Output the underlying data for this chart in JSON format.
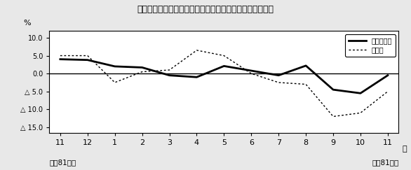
{
  "title": "第２図　所定外労働時間対前年比の推移（規模５人以上）",
  "x_labels": [
    "11",
    "12",
    "1",
    "2",
    "3",
    "4",
    "5",
    "6",
    "7",
    "8",
    "9",
    "10",
    "11"
  ],
  "x_bottom_left": "平成81８年",
  "x_bottom_right": "平成81９年",
  "month_label": "月",
  "ylabel": "%",
  "ylim": [
    -16.5,
    12.0
  ],
  "yticks": [
    10.0,
    5.0,
    0.0,
    -5.0,
    -10.0,
    -15.0
  ],
  "ytick_labels": [
    "10.0",
    "5.0",
    "0.0",
    "△ 5.0",
    "△ 10.0",
    "△ 15.0"
  ],
  "series_solid": [
    4.0,
    3.8,
    2.0,
    1.7,
    -0.5,
    -1.0,
    2.1,
    0.8,
    -0.5,
    2.2,
    -4.5,
    -5.5,
    -0.5
  ],
  "series_dotted": [
    5.0,
    5.0,
    -2.5,
    0.5,
    1.0,
    6.5,
    5.0,
    0.0,
    -2.5,
    -3.0,
    -12.0,
    -11.0,
    -5.0
  ],
  "legend_solid": "調査産業計",
  "legend_dotted": "製造業",
  "bg_color": "#e8e8e8",
  "plot_bg_color": "#ffffff",
  "line_color_solid": "#000000",
  "line_color_dotted": "#000000",
  "border_color": "#000000"
}
